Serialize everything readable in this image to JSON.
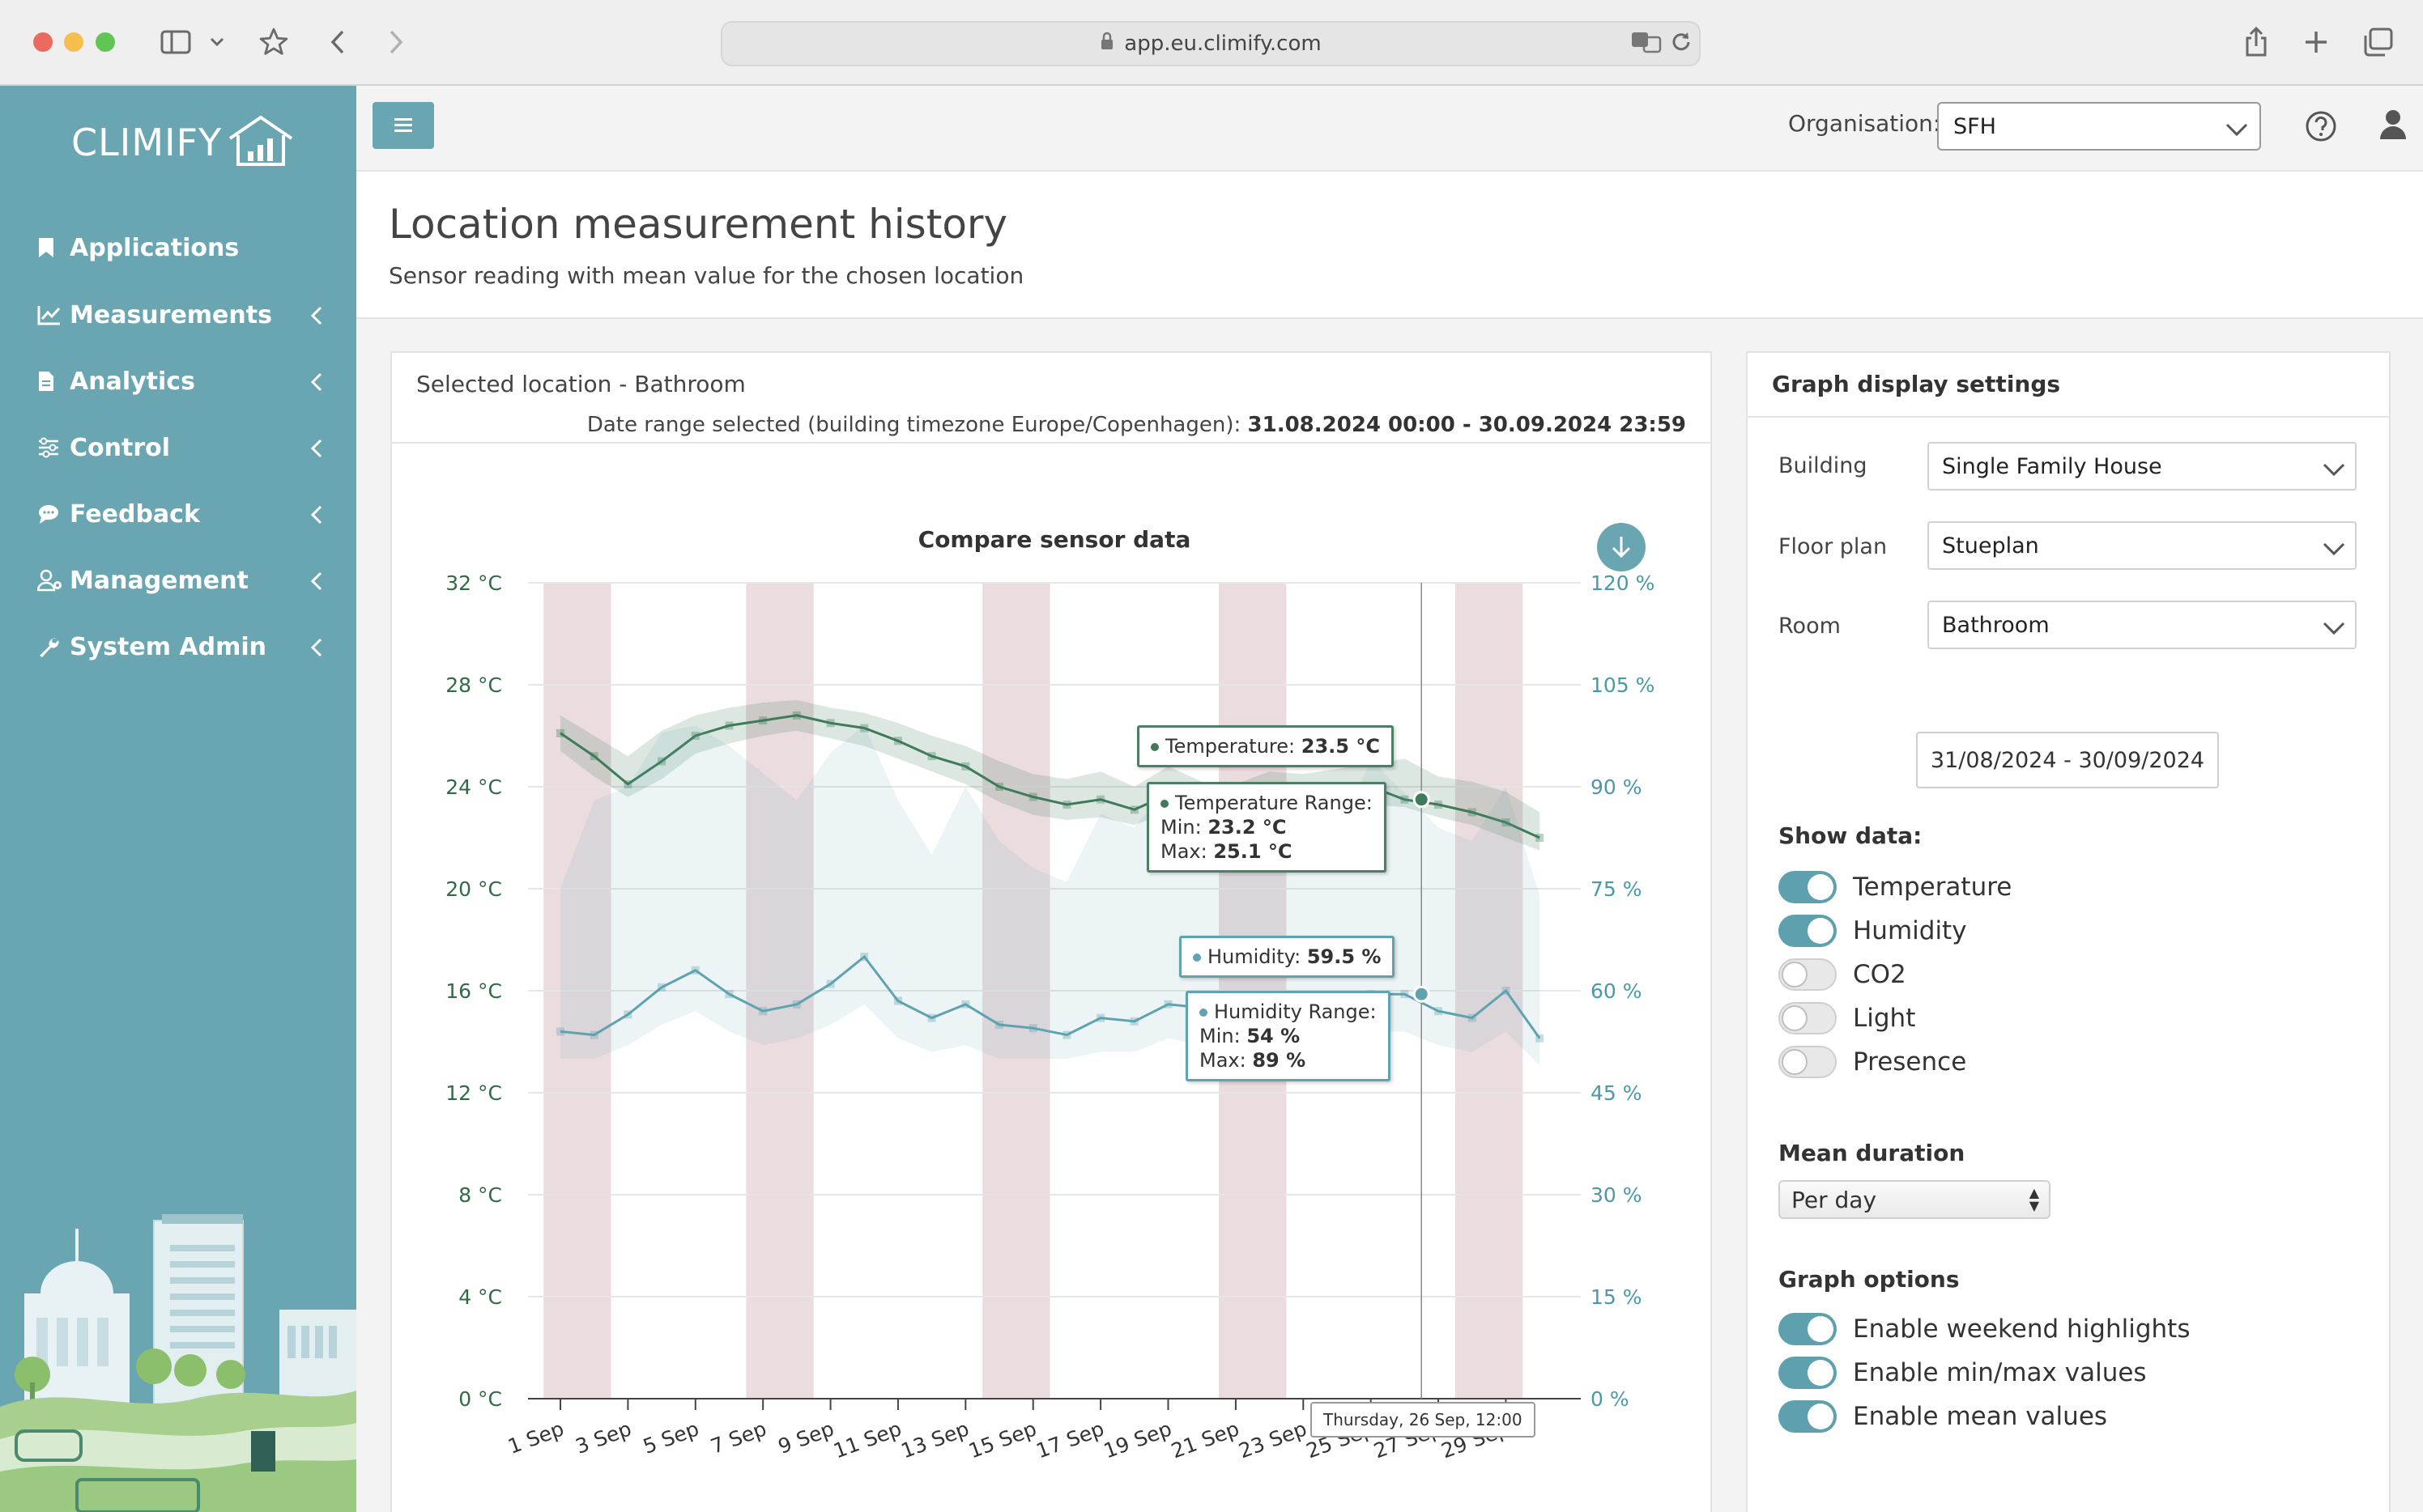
{
  "browser": {
    "url": "app.eu.climify.com"
  },
  "sidebar": {
    "brand": "CLIMIFY",
    "items": [
      {
        "label": "Applications",
        "icon": "bookmark-icon",
        "has_submenu": false
      },
      {
        "label": "Measurements",
        "icon": "line-chart-icon",
        "has_submenu": true
      },
      {
        "label": "Analytics",
        "icon": "document-icon",
        "has_submenu": true
      },
      {
        "label": "Control",
        "icon": "sliders-icon",
        "has_submenu": true
      },
      {
        "label": "Feedback",
        "icon": "comment-icon",
        "has_submenu": true
      },
      {
        "label": "Management",
        "icon": "user-gear-icon",
        "has_submenu": true
      },
      {
        "label": "System Admin",
        "icon": "wrench-icon",
        "has_submenu": true
      }
    ]
  },
  "header": {
    "org_label": "Organisation:",
    "org_value": "SFH"
  },
  "page": {
    "title": "Location measurement history",
    "subtitle": "Sensor reading with mean value for the chosen location"
  },
  "location_card": {
    "title": "Selected location - Bathroom",
    "date_prefix": "Date range selected (building timezone Europe/Copenhagen):",
    "date_value": "31.08.2024 00:00 - 30.09.2024 23:59"
  },
  "chart_data": {
    "type": "line",
    "title": "Compare sensor data",
    "x_categories_visible": [
      "1 Sep",
      "3 Sep",
      "5 Sep",
      "7 Sep",
      "9 Sep",
      "11 Sep",
      "13 Sep",
      "15 Sep",
      "17 Sep",
      "19 Sep",
      "21 Sep",
      "23 Sep",
      "25 Sep",
      "27 Sep",
      "29 Sep"
    ],
    "days": [
      1,
      2,
      3,
      4,
      5,
      6,
      7,
      8,
      9,
      10,
      11,
      12,
      13,
      14,
      15,
      16,
      17,
      18,
      19,
      20,
      21,
      22,
      23,
      24,
      25,
      26,
      27,
      28,
      29,
      30
    ],
    "y_left": {
      "unit": "°C",
      "ticks": [
        "0 °C",
        "4 °C",
        "8 °C",
        "12 °C",
        "16 °C",
        "20 °C",
        "24 °C",
        "28 °C",
        "32 °C"
      ],
      "min": 0,
      "max": 32
    },
    "y_right": {
      "unit": "%",
      "ticks": [
        "0 %",
        "15 %",
        "30 %",
        "45 %",
        "60 %",
        "75 %",
        "90 %",
        "105 %",
        "120 %"
      ],
      "min": 0,
      "max": 120
    },
    "weekend_ranges": [
      [
        31.5,
        33.5
      ],
      [
        6.5,
        8.5
      ],
      [
        13.5,
        15.5
      ],
      [
        20.5,
        22.5
      ],
      [
        27.5,
        29.5
      ]
    ],
    "series": [
      {
        "name": "Temperature",
        "axis": "left",
        "color": "#3f7a5a",
        "values": [
          26.1,
          25.2,
          24.1,
          25.0,
          26.0,
          26.4,
          26.6,
          26.8,
          26.5,
          26.3,
          25.8,
          25.2,
          24.8,
          24.0,
          23.6,
          23.3,
          23.5,
          23.1,
          23.7,
          23.4,
          23.2,
          23.8,
          23.6,
          23.9,
          24.0,
          23.5,
          23.3,
          23.0,
          22.6,
          22.0
        ],
        "min": [
          25.4,
          24.4,
          23.6,
          24.3,
          25.3,
          25.7,
          26.0,
          26.2,
          25.9,
          25.6,
          25.1,
          24.6,
          24.1,
          23.4,
          22.9,
          22.7,
          22.8,
          22.5,
          23.0,
          22.8,
          22.6,
          23.1,
          23.0,
          23.3,
          23.3,
          23.2,
          22.8,
          22.5,
          22.0,
          21.5
        ],
        "max": [
          26.8,
          26.0,
          25.2,
          26.2,
          26.8,
          27.1,
          27.3,
          27.4,
          27.1,
          26.9,
          26.5,
          26.0,
          25.6,
          25.0,
          24.5,
          24.3,
          24.6,
          24.0,
          24.8,
          24.2,
          24.1,
          24.6,
          24.5,
          24.7,
          24.9,
          25.1,
          24.4,
          24.2,
          23.8,
          23.0
        ]
      },
      {
        "name": "Humidity",
        "axis": "right",
        "color": "#5fa2b0",
        "values": [
          54.0,
          53.5,
          56.5,
          60.5,
          63.0,
          59.5,
          57.0,
          58.0,
          61.0,
          65.0,
          58.5,
          56.0,
          58.0,
          55.0,
          54.5,
          53.5,
          56.0,
          55.5,
          58.0,
          57.5,
          56.0,
          55.5,
          57.0,
          56.5,
          59.5,
          59.5,
          57.0,
          56.0,
          60.0,
          53.0
        ],
        "min": [
          50,
          50,
          52,
          55,
          57,
          54,
          52,
          53,
          55,
          58,
          53,
          51,
          52,
          50,
          50,
          50,
          51,
          51,
          53,
          52,
          51,
          51,
          52,
          52,
          54,
          54,
          52,
          51,
          54,
          49
        ],
        "max": [
          75,
          88,
          90,
          98,
          99,
          96,
          92,
          88,
          95,
          99,
          88,
          80,
          90,
          82,
          78,
          76,
          86,
          84,
          90,
          82,
          78,
          80,
          84,
          82,
          94,
          89,
          84,
          82,
          90,
          74
        ]
      }
    ],
    "tooltips": {
      "temperature": {
        "label": "Temperature:",
        "value": "23.5 °C"
      },
      "temperature_range": {
        "label": "Temperature Range:",
        "min_label": "Min:",
        "min": "23.2 °C",
        "max_label": "Max:",
        "max": "25.1 °C"
      },
      "humidity": {
        "label": "Humidity:",
        "value": "59.5 %"
      },
      "humidity_range": {
        "label": "Humidity Range:",
        "min_label": "Min:",
        "min": "54 %",
        "max_label": "Max:",
        "max": "89 %"
      },
      "x": "Thursday, 26 Sep, 12:00"
    },
    "legend_placement": "bottom",
    "grid": true
  },
  "settings": {
    "title": "Graph display settings",
    "building_label": "Building",
    "building_value": "Single Family House",
    "floor_label": "Floor plan",
    "floor_value": "Stueplan",
    "room_label": "Room",
    "room_value": "Bathroom",
    "date_range": "31/08/2024 - 30/09/2024",
    "show_data_title": "Show data:",
    "show_data": [
      {
        "label": "Temperature",
        "on": true
      },
      {
        "label": "Humidity",
        "on": true
      },
      {
        "label": "CO2",
        "on": false
      },
      {
        "label": "Light",
        "on": false
      },
      {
        "label": "Presence",
        "on": false
      }
    ],
    "mean_title": "Mean duration",
    "mean_value": "Per day",
    "options_title": "Graph options",
    "options": [
      {
        "label": "Enable weekend highlights",
        "on": true
      },
      {
        "label": "Enable min/max values",
        "on": true
      },
      {
        "label": "Enable mean values",
        "on": true
      }
    ]
  }
}
